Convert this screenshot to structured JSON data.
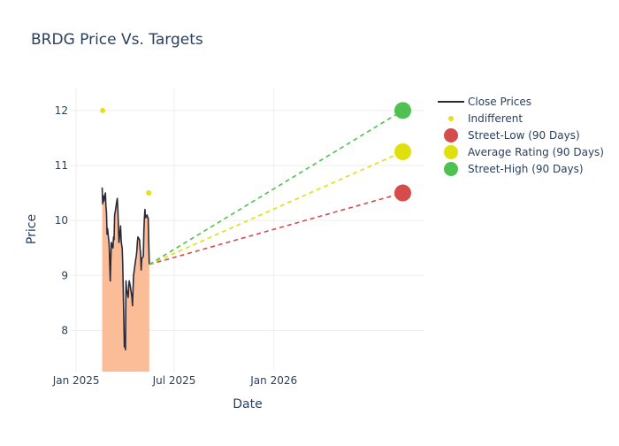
{
  "chart_data": {
    "type": "line",
    "title": "BRDG Price Vs. Targets",
    "xlabel": "Date",
    "ylabel": "Price",
    "x_range": [
      "2024-12-22",
      "2026-10-06"
    ],
    "ylim": [
      7.25,
      12.4
    ],
    "x_ticks": [
      {
        "date": "2025-01-01",
        "label": "Jan 2025"
      },
      {
        "date": "2025-07-01",
        "label": "Jul 2025"
      },
      {
        "date": "2026-01-01",
        "label": "Jan 2026"
      }
    ],
    "y_ticks": [
      8,
      9,
      10,
      11,
      12
    ],
    "grid": true,
    "legend_position": "top-right",
    "close_prices": {
      "name": "Close Prices",
      "color": "#2a2a3a",
      "fill_color": "#fbbd98",
      "points": [
        [
          "2025-02-18",
          10.6
        ],
        [
          "2025-02-19",
          10.3
        ],
        [
          "2025-02-20",
          10.45
        ],
        [
          "2025-02-21",
          10.35
        ],
        [
          "2025-02-24",
          10.5
        ],
        [
          "2025-02-25",
          10.25
        ],
        [
          "2025-02-26",
          10.15
        ],
        [
          "2025-02-27",
          9.75
        ],
        [
          "2025-02-28",
          9.85
        ],
        [
          "2025-03-03",
          9.55
        ],
        [
          "2025-03-04",
          9.2
        ],
        [
          "2025-03-05",
          8.9
        ],
        [
          "2025-03-06",
          9.3
        ],
        [
          "2025-03-07",
          9.6
        ],
        [
          "2025-03-10",
          9.5
        ],
        [
          "2025-03-11",
          9.7
        ],
        [
          "2025-03-12",
          9.65
        ],
        [
          "2025-03-13",
          10.1
        ],
        [
          "2025-03-14",
          10.15
        ],
        [
          "2025-03-17",
          10.35
        ],
        [
          "2025-03-18",
          10.4
        ],
        [
          "2025-03-19",
          10.2
        ],
        [
          "2025-03-20",
          9.9
        ],
        [
          "2025-03-21",
          9.6
        ],
        [
          "2025-03-24",
          9.9
        ],
        [
          "2025-03-25",
          9.65
        ],
        [
          "2025-03-26",
          9.55
        ],
        [
          "2025-03-27",
          9.5
        ],
        [
          "2025-03-28",
          9.2
        ],
        [
          "2025-03-31",
          7.7
        ],
        [
          "2025-04-01",
          7.8
        ],
        [
          "2025-04-02",
          7.65
        ],
        [
          "2025-04-03",
          8.9
        ],
        [
          "2025-04-04",
          8.75
        ],
        [
          "2025-04-07",
          8.6
        ],
        [
          "2025-04-08",
          8.8
        ],
        [
          "2025-04-09",
          8.9
        ],
        [
          "2025-04-10",
          8.85
        ],
        [
          "2025-04-11",
          8.8
        ],
        [
          "2025-04-14",
          8.6
        ],
        [
          "2025-04-15",
          8.45
        ],
        [
          "2025-04-16",
          8.75
        ],
        [
          "2025-04-17",
          9.0
        ],
        [
          "2025-04-21",
          9.3
        ],
        [
          "2025-04-22",
          9.35
        ],
        [
          "2025-04-23",
          9.45
        ],
        [
          "2025-04-24",
          9.6
        ],
        [
          "2025-04-25",
          9.7
        ],
        [
          "2025-04-28",
          9.65
        ],
        [
          "2025-04-29",
          9.5
        ],
        [
          "2025-04-30",
          9.4
        ],
        [
          "2025-05-01",
          9.1
        ],
        [
          "2025-05-02",
          9.3
        ],
        [
          "2025-05-05",
          9.35
        ],
        [
          "2025-05-06",
          9.8
        ],
        [
          "2025-05-07",
          10.05
        ],
        [
          "2025-05-08",
          10.2
        ],
        [
          "2025-05-09",
          10.05
        ],
        [
          "2025-05-12",
          10.1
        ],
        [
          "2025-05-13",
          10.05
        ],
        [
          "2025-05-14",
          10.05
        ],
        [
          "2025-05-15",
          9.6
        ],
        [
          "2025-05-16",
          9.2
        ]
      ]
    },
    "indifferent": {
      "name": "Indifferent",
      "color": "#e6e01a",
      "points": [
        [
          "2025-02-19",
          12.0
        ],
        [
          "2025-05-15",
          10.5
        ]
      ]
    },
    "targets": [
      {
        "name": "Street-Low (90 Days)",
        "color": "#d54c4c",
        "value": 10.5
      },
      {
        "name": "Average Rating (90 Days)",
        "color": "#e0e010",
        "value": 11.25
      },
      {
        "name": "Street-High (90 Days)",
        "color": "#4fc150",
        "value": 12.0
      }
    ],
    "target_date": "2026-08-27",
    "target_lines_from": [
      "2025-05-16",
      9.2
    ]
  }
}
